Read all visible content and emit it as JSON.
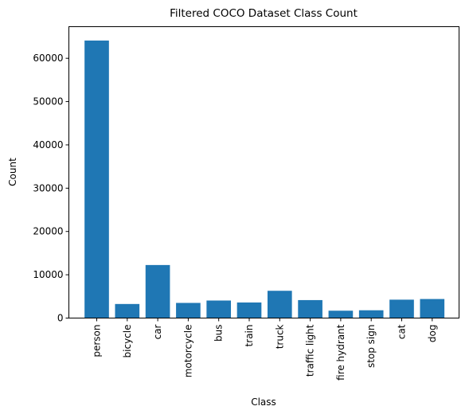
{
  "chart_data": {
    "type": "bar",
    "title": "Filtered COCO Dataset Class Count",
    "xlabel": "Class",
    "ylabel": "Count",
    "categories": [
      "person",
      "bicycle",
      "car",
      "motorcycle",
      "bus",
      "train",
      "truck",
      "traffic light",
      "fire hydrant",
      "stop sign",
      "cat",
      "dog"
    ],
    "values": [
      64100,
      3250,
      12250,
      3500,
      4050,
      3600,
      6300,
      4150,
      1700,
      1800,
      4250,
      4400
    ],
    "ylim": [
      0,
      67300
    ],
    "yticks": [
      0,
      10000,
      20000,
      30000,
      40000,
      50000,
      60000
    ],
    "grid": false,
    "bar_color": "#1f77b4"
  }
}
